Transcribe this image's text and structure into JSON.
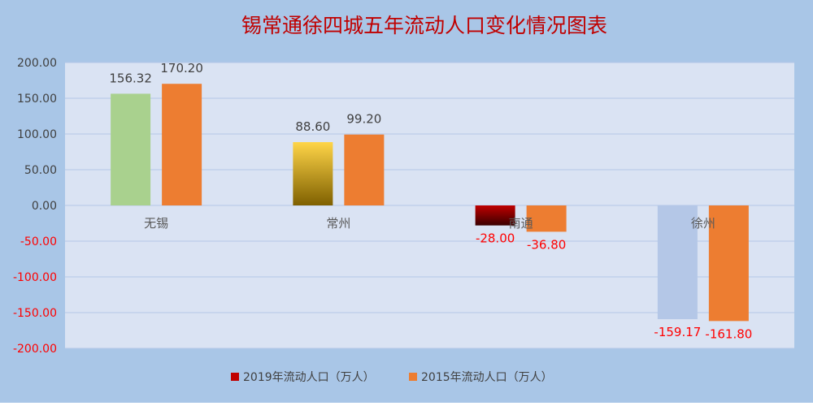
{
  "chart_data": {
    "type": "bar",
    "title": "锡常通徐四城五年流动人口变化情况图表",
    "categories": [
      "无锡",
      "常州",
      "南通",
      "徐州"
    ],
    "series": [
      {
        "name": "2019年流动人口（万人）",
        "values": [
          156.32,
          88.6,
          -28.0,
          -159.17
        ]
      },
      {
        "name": "2015年流动人口（万人）",
        "values": [
          170.2,
          99.2,
          -36.8,
          -161.8
        ]
      }
    ],
    "data_labels": [
      [
        "156.32",
        "88.60",
        "-28.00",
        "-159.17"
      ],
      [
        "170.20",
        "99.20",
        "-36.80",
        "-161.80"
      ]
    ],
    "ylim": [
      -200,
      200
    ],
    "yticks": [
      200,
      150,
      100,
      50,
      0,
      -50,
      -100,
      -150,
      -200
    ],
    "ytick_labels": [
      "200.00",
      "150.00",
      "100.00",
      "50.00",
      "0.00",
      "-50.00",
      "-100.00",
      "-150.00",
      "-200.00"
    ],
    "xlabel": "",
    "ylabel": "",
    "grid": true,
    "legend_position": "bottom",
    "colors": {
      "background": "#a9c6e7",
      "plot_area": "#dae3f3",
      "gridline": "#b4c7e7",
      "title": "#c00000",
      "label_positive": "#404040",
      "label_negative": "#ff0000",
      "category_label": "#595959",
      "legend_2019": "#c00000",
      "series_2015": "#ed7d31",
      "bar_wuxi_2019": "#a9d18e",
      "bar_changzhou_2019_top": "#ffd548",
      "bar_changzhou_2019_bottom": "#7f6000",
      "bar_nantong_2019": "#c00000",
      "bar_xuzhou_2019": "#b4c7e7"
    }
  }
}
